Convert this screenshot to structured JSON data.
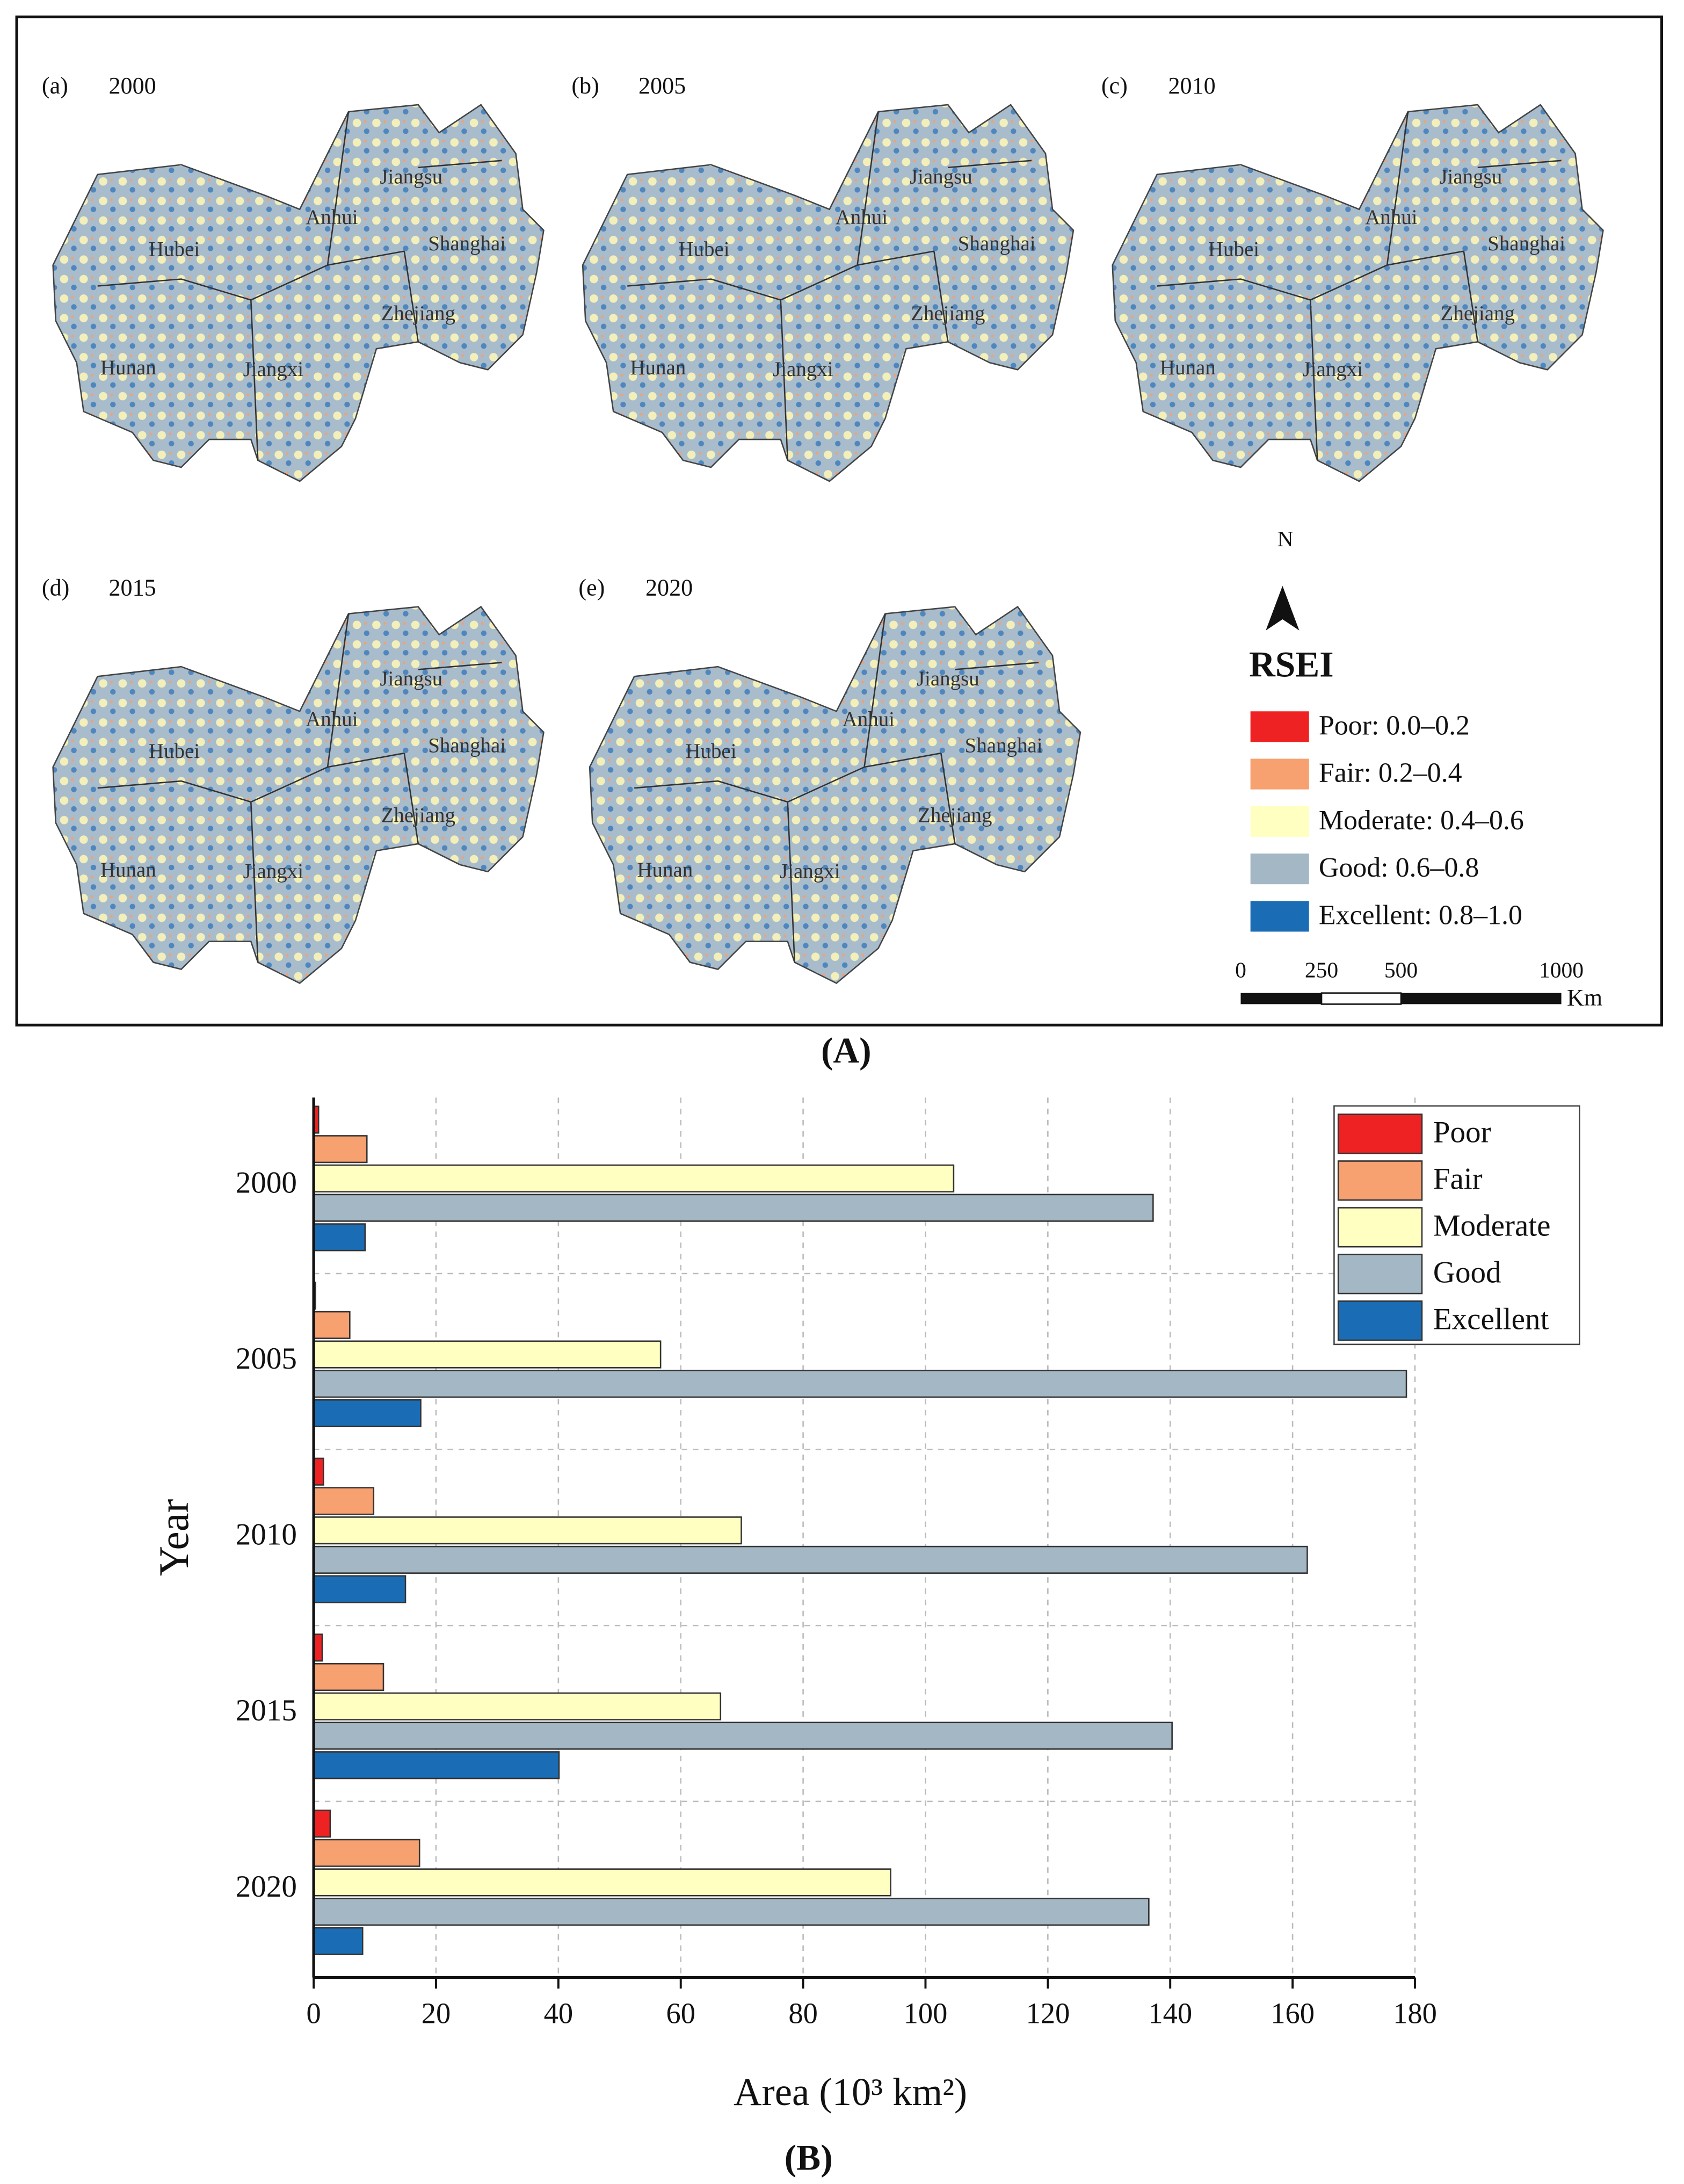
{
  "maps": {
    "panel_label": "(A)",
    "panels": [
      {
        "label": "(a)",
        "year": "2000"
      },
      {
        "label": "(b)",
        "year": "2005"
      },
      {
        "label": "(c)",
        "year": "2010"
      },
      {
        "label": "(d)",
        "year": "2015"
      },
      {
        "label": "(e)",
        "year": "2020"
      }
    ],
    "provinces": [
      "Jiangsu",
      "Anhui",
      "Shanghai",
      "Hubei",
      "Zhejiang",
      "Hunan",
      "Jiangxi"
    ],
    "north": "N",
    "legend_title": "RSEI",
    "legend": [
      {
        "label": "Poor: 0.0–0.2",
        "color": "#ee2222"
      },
      {
        "label": "Fair: 0.2–0.4",
        "color": "#f7a070"
      },
      {
        "label": "Moderate: 0.4–0.6",
        "color": "#ffffc2"
      },
      {
        "label": "Good: 0.6–0.8",
        "color": "#a3b7c4"
      },
      {
        "label": "Excellent: 0.8–1.0",
        "color": "#1a6db4"
      }
    ],
    "scale_labels": [
      "0",
      "250",
      "500",
      "1000"
    ],
    "scale_unit": "Km"
  },
  "chart_data": {
    "type": "bar",
    "orientation": "horizontal",
    "panel_label": "(B)",
    "y_label": "Year",
    "x_label": "Area (10³ km²)",
    "categories": [
      "2000",
      "2005",
      "2010",
      "2015",
      "2020"
    ],
    "series": [
      {
        "name": "Poor",
        "color": "#ee2222",
        "values": [
          0.8,
          0.3,
          1.6,
          1.4,
          2.7
        ]
      },
      {
        "name": "Fair",
        "color": "#f7a070",
        "values": [
          8.7,
          5.9,
          9.8,
          11.4,
          17.3
        ]
      },
      {
        "name": "Moderate",
        "color": "#ffffc2",
        "values": [
          104.6,
          56.7,
          69.9,
          66.5,
          94.3
        ]
      },
      {
        "name": "Good",
        "color": "#a3b7c4",
        "values": [
          137.2,
          178.6,
          162.4,
          140.3,
          136.5
        ]
      },
      {
        "name": "Excellent",
        "color": "#1a6db4",
        "values": [
          8.4,
          17.5,
          15.0,
          40.1,
          8.0
        ]
      }
    ],
    "xlim": [
      0,
      180
    ],
    "xticks": [
      0,
      20,
      40,
      60,
      80,
      100,
      120,
      140,
      160,
      180
    ],
    "grid": true,
    "legend_position": "upper right"
  }
}
